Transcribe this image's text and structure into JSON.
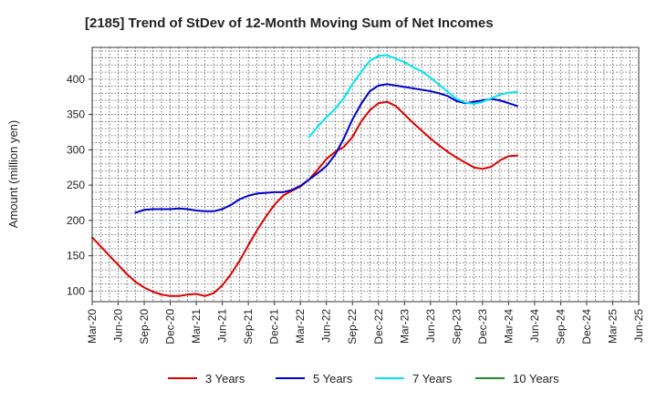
{
  "chart_data": {
    "type": "line",
    "title": "[2185]  Trend of StDev of 12-Month Moving Sum of Net Incomes",
    "ylabel": "Amount (million yen)",
    "xlabel": "",
    "ylim": [
      85,
      445
    ],
    "yticks": [
      100,
      150,
      200,
      250,
      300,
      350,
      400
    ],
    "xlim": [
      "2020-03",
      "2025-03"
    ],
    "xticks": [
      "Mar-20",
      "Jun-20",
      "Sep-20",
      "Dec-20",
      "Mar-21",
      "Jun-21",
      "Sep-21",
      "Dec-21",
      "Mar-22",
      "Jun-22",
      "Sep-22",
      "Dec-22",
      "Mar-23",
      "Jun-23",
      "Sep-23",
      "Dec-23",
      "Mar-24",
      "Jun-24",
      "Sep-24",
      "Dec-24",
      "Mar-25",
      "Jun-25"
    ],
    "grid": true,
    "legend_position": "bottom",
    "series": [
      {
        "name": "3 Years",
        "color": "#dd0000",
        "start": "Mar-20",
        "values": [
          176,
          163,
          150,
          137,
          124,
          113,
          105,
          99,
          95,
          93,
          93,
          95,
          96,
          93,
          97,
          108,
          124,
          143,
          165,
          186,
          205,
          222,
          235,
          242,
          248,
          258,
          272,
          287,
          297,
          304,
          318,
          340,
          356,
          366,
          368,
          362,
          350,
          338,
          327,
          316,
          306,
          297,
          289,
          282,
          275,
          273,
          276,
          285,
          291,
          292
        ]
      },
      {
        "name": "5 Years",
        "color": "#0000cc",
        "start": "Mar-20",
        "values": [
          null,
          null,
          null,
          null,
          null,
          211,
          215,
          216,
          216,
          216,
          217,
          216,
          214,
          213,
          213,
          216,
          222,
          230,
          235,
          238,
          239,
          240,
          240,
          243,
          249,
          258,
          267,
          277,
          293,
          316,
          343,
          365,
          383,
          391,
          393,
          391,
          389,
          387,
          385,
          383,
          380,
          376,
          369,
          366,
          368,
          370,
          372,
          370,
          366,
          362
        ]
      },
      {
        "name": "7 Years",
        "color": "#00e5ee",
        "start": "Mar-20",
        "values": [
          null,
          null,
          null,
          null,
          null,
          null,
          null,
          null,
          null,
          null,
          null,
          null,
          null,
          null,
          null,
          null,
          null,
          null,
          null,
          null,
          null,
          null,
          null,
          null,
          null,
          318,
          333,
          346,
          358,
          373,
          393,
          410,
          426,
          433,
          434,
          429,
          424,
          417,
          411,
          402,
          392,
          382,
          372,
          367,
          365,
          368,
          373,
          378,
          381,
          382
        ]
      },
      {
        "name": "10 Years",
        "color": "#228b22",
        "start": "Mar-20",
        "values": []
      }
    ]
  }
}
